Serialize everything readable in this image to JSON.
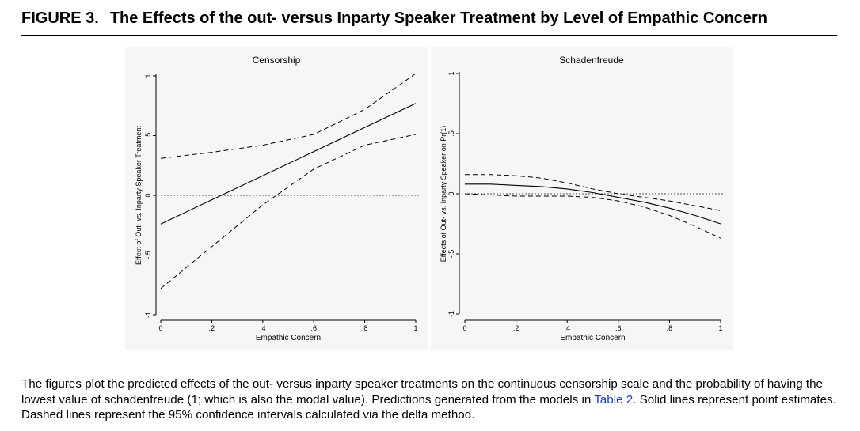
{
  "header": {
    "figure_number": "FIGURE 3.",
    "title": "The Effects of the out- versus Inparty Speaker Treatment by Level of Empathic Concern"
  },
  "caption": {
    "text_before_link": "The figures plot the predicted effects of the out- versus inparty speaker treatments on the continuous censorship scale and the probability of having the lowest value of schadenfreude (1; which is also the modal value). Predictions generated from the models in ",
    "link_text": "Table 2",
    "text_after_link": ". Solid lines represent point estimates. Dashed lines represent the 95% confidence intervals calculated via the delta method."
  },
  "chart_data": [
    {
      "type": "line",
      "title": "Censorship",
      "xlabel": "Empathic Concern",
      "ylabel": "Effect of Out- vs. Inparty Speaker Treatment",
      "xlim": [
        0,
        1
      ],
      "ylim": [
        -1,
        1
      ],
      "x_ticks": [
        0,
        0.2,
        0.4,
        0.6,
        0.8,
        1
      ],
      "x_tick_labels": [
        "0",
        ".2",
        ".4",
        ".6",
        ".8",
        "1"
      ],
      "y_ticks": [
        -1,
        -0.5,
        0,
        0.5,
        1
      ],
      "y_tick_labels": [
        "-1",
        "-.5",
        "0",
        ".5",
        "1"
      ],
      "reference_line": 0,
      "series": [
        {
          "role": "estimate",
          "x": [
            0,
            1
          ],
          "y": [
            -0.24,
            0.77
          ]
        },
        {
          "role": "upper",
          "x": [
            0,
            0.2,
            0.4,
            0.6,
            0.8,
            1
          ],
          "y": [
            0.31,
            0.36,
            0.42,
            0.51,
            0.72,
            1.02
          ]
        },
        {
          "role": "lower",
          "x": [
            0,
            0.2,
            0.4,
            0.6,
            0.8,
            1
          ],
          "y": [
            -0.78,
            -0.43,
            -0.08,
            0.22,
            0.42,
            0.51
          ]
        }
      ]
    },
    {
      "type": "line",
      "title": "Schadenfreude",
      "xlabel": "Empathic Concern",
      "ylabel": "Effects of Out- vs. Inparty Speaker on Pr(1)",
      "xlim": [
        0,
        1
      ],
      "ylim": [
        -1,
        1
      ],
      "x_ticks": [
        0,
        0.2,
        0.4,
        0.6,
        0.8,
        1
      ],
      "x_tick_labels": [
        "0",
        ".2",
        ".4",
        ".6",
        ".8",
        "1"
      ],
      "y_ticks": [
        -1,
        -0.5,
        0,
        0.5,
        1
      ],
      "y_tick_labels": [
        "-1",
        "-.5",
        "0",
        ".5",
        "1"
      ],
      "reference_line": 0,
      "series": [
        {
          "role": "estimate",
          "x": [
            0,
            0.1,
            0.2,
            0.3,
            0.4,
            0.5,
            0.6,
            0.7,
            0.8,
            0.9,
            1
          ],
          "y": [
            0.08,
            0.08,
            0.07,
            0.06,
            0.04,
            0.01,
            -0.03,
            -0.07,
            -0.12,
            -0.18,
            -0.25
          ]
        },
        {
          "role": "upper",
          "x": [
            0,
            0.1,
            0.2,
            0.3,
            0.4,
            0.5,
            0.6,
            0.7,
            0.8,
            0.9,
            1
          ],
          "y": [
            0.16,
            0.16,
            0.15,
            0.13,
            0.09,
            0.04,
            0.0,
            -0.03,
            -0.06,
            -0.1,
            -0.14
          ]
        },
        {
          "role": "lower",
          "x": [
            0,
            0.1,
            0.2,
            0.3,
            0.4,
            0.5,
            0.6,
            0.7,
            0.8,
            0.9,
            1
          ],
          "y": [
            0.0,
            -0.01,
            -0.02,
            -0.02,
            -0.02,
            -0.03,
            -0.06,
            -0.11,
            -0.18,
            -0.27,
            -0.37
          ]
        }
      ]
    }
  ]
}
